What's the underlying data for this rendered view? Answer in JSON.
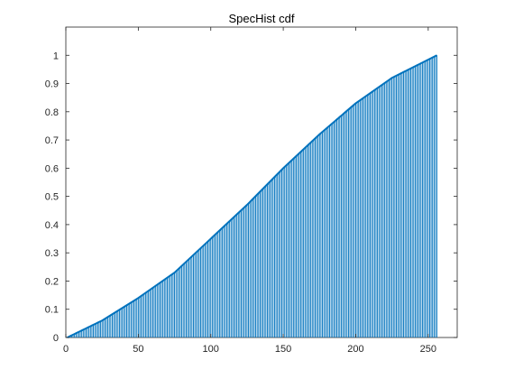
{
  "chart_data": {
    "type": "bar",
    "title": "SpecHist cdf",
    "xlabel": "",
    "ylabel": "",
    "xlim": [
      0,
      270
    ],
    "ylim": [
      0,
      1.1
    ],
    "xticks": [
      0,
      50,
      100,
      150,
      200,
      250
    ],
    "yticks": [
      0,
      0.1,
      0.2,
      0.3,
      0.4,
      0.5,
      0.6,
      0.7,
      0.8,
      0.9,
      1
    ],
    "grid": false,
    "legend": "none",
    "series": [
      {
        "kind": "stem-bars",
        "x_start": 1,
        "x_end": 256,
        "step": 1,
        "y_at": {
          "1": 0.0,
          "25": 0.06,
          "50": 0.14,
          "75": 0.23,
          "100": 0.35,
          "125": 0.47,
          "150": 0.6,
          "175": 0.72,
          "200": 0.83,
          "225": 0.92,
          "256": 1.0
        }
      }
    ],
    "colors": {
      "series": "#0072BD",
      "axes": "#262626"
    }
  }
}
